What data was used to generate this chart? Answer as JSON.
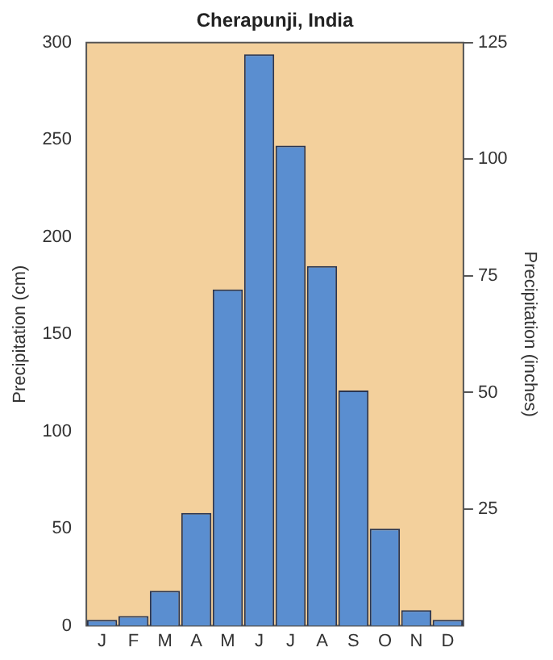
{
  "chart_data": {
    "type": "bar",
    "title": "Cherapunji, India",
    "ylabel": "Precipitation (cm)",
    "y2label": "Precipitation (inches)",
    "categories": [
      "J",
      "F",
      "M",
      "A",
      "M",
      "J",
      "J",
      "A",
      "S",
      "O",
      "N",
      "D"
    ],
    "series": [
      {
        "color": "#5a8ed0",
        "values": [
          3,
          5,
          18,
          58,
          173,
          294,
          247,
          185,
          121,
          50,
          8,
          3
        ]
      }
    ],
    "ylim": [
      0,
      300
    ],
    "yticks": [
      0,
      50,
      100,
      150,
      200,
      250,
      300
    ],
    "y2lim": [
      0,
      125
    ],
    "y2ticks": [
      25,
      50,
      75,
      100,
      125
    ],
    "grid": false,
    "legend": false
  }
}
